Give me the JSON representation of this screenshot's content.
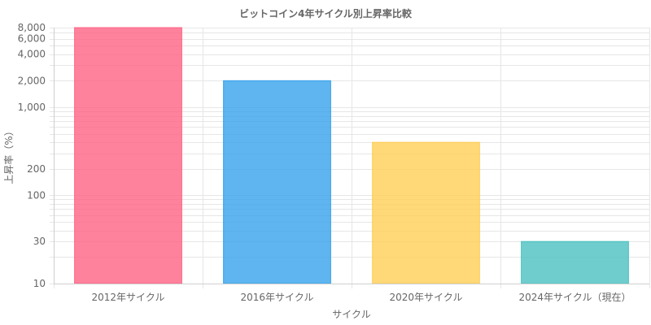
{
  "chart_data": {
    "type": "bar",
    "title": "ビットコイン4年サイクル別上昇率比較",
    "xlabel": "サイクル",
    "ylabel": "上昇率（%）",
    "categories": [
      "2012年サイクル",
      "2016年サイクル",
      "2020年サイクル",
      "2024年サイクル（現在）"
    ],
    "values": [
      8000,
      2000,
      400,
      30
    ],
    "colors": [
      "#ff6384",
      "#36a2eb",
      "#ffce56",
      "#4bc0c0"
    ],
    "y_scale": "log",
    "ylim": [
      10,
      8000
    ],
    "y_ticks": [
      8000,
      6000,
      4000,
      2000,
      1000,
      200,
      100,
      30,
      10
    ],
    "y_tick_labels": [
      "8,000",
      "6,000",
      "4,000",
      "2,000",
      "1,000",
      "200",
      "100",
      "30",
      "10"
    ],
    "grid": true,
    "legend": "none"
  }
}
